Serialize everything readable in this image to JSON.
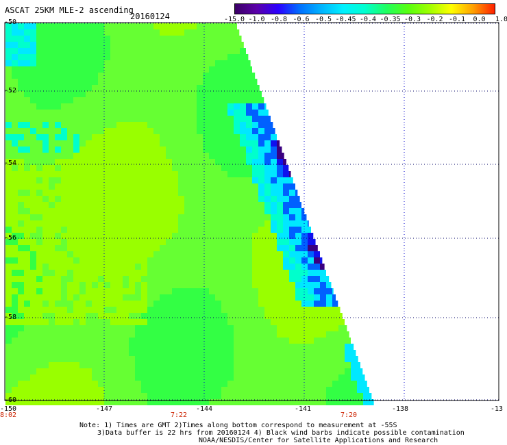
{
  "header": {
    "title": "ASCAT 25KM MLE-2 ascending",
    "date": "20160124"
  },
  "colorbar": {
    "labels": [
      "-15.0",
      "-1.0",
      "-0.8",
      "-0.6",
      "-0.5",
      "-0.45",
      "-0.4",
      "-0.35",
      "-0.3",
      "-0.2",
      "-0.1",
      "0.0",
      "1.0"
    ],
    "colors": [
      "#3b0066",
      "#5a00a8",
      "#2a00ff",
      "#0070ff",
      "#00b4ff",
      "#00f0ff",
      "#00ffd0",
      "#20ff60",
      "#58ff10",
      "#a0ff00",
      "#ffff00",
      "#ffa000",
      "#ff2000"
    ]
  },
  "axes": {
    "lat_labels": [
      "-50",
      "-52",
      "-54",
      "-56",
      "-58",
      "-60"
    ],
    "lon_labels": [
      "-150",
      "-147",
      "-144",
      "-141",
      "-138",
      "-13"
    ],
    "time_labels": [
      "8:02",
      "7:22",
      "7:20"
    ]
  },
  "notes": {
    "line1": "Note: 1) Times are GMT 2)Times along bottom correspond to measurement at -55S",
    "line2": "3)Data buffer is 22 hrs from 20160124 4) Black wind barbs indicate possible contamination",
    "line3": "NOAA/NESDIS/Center for Satellite Applications and Research"
  },
  "map": {
    "lat_range": [
      -60,
      -50
    ],
    "lon_range": [
      -150,
      -135
    ],
    "grid": true,
    "field_colors": {
      "base": "#66ff33",
      "lime": "#99ff00",
      "green": "#33ff44",
      "teal": "#00ffcc",
      "cyan": "#00e8ff",
      "blue": "#0060ff",
      "deep_blue": "#1010ee",
      "purple": "#3a0080"
    }
  }
}
